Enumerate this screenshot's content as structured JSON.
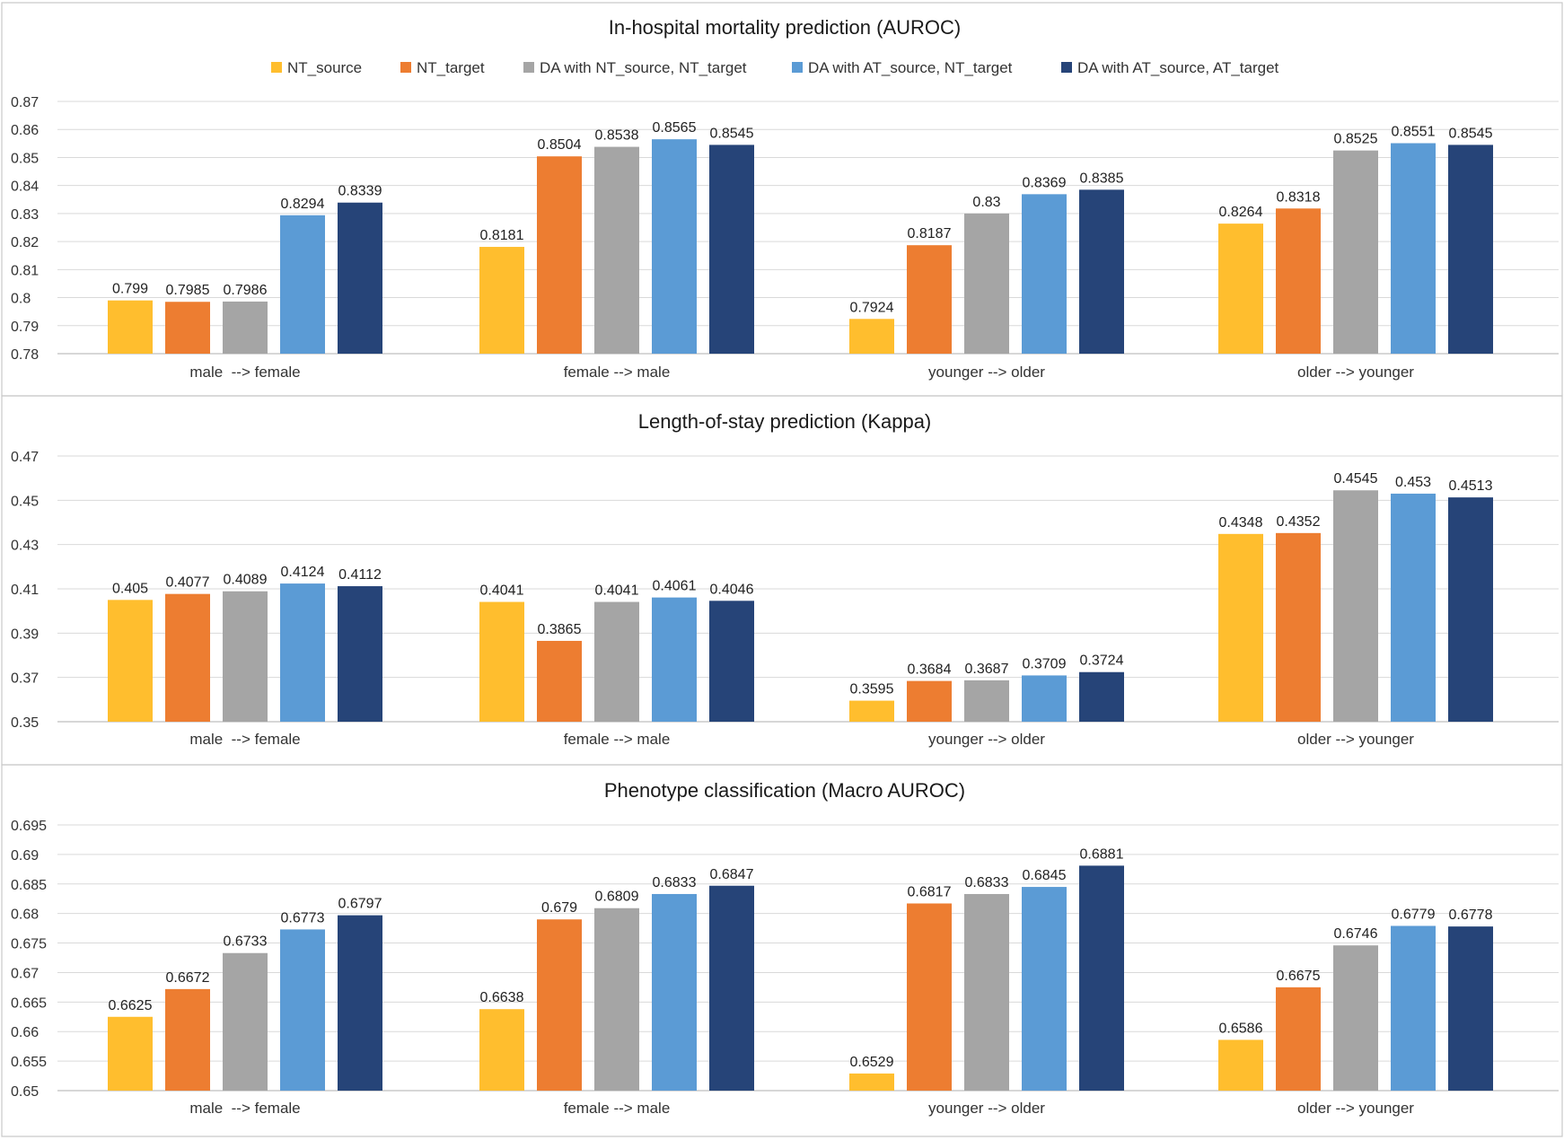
{
  "colors": {
    "NT_source": "#FFBE2E",
    "NT_target": "#ED7D31",
    "DA with NT_source, NT_target": "#A5A5A5",
    "DA with AT_source, NT_target": "#5B9BD5",
    "DA with AT_source, AT_target": "#264478"
  },
  "legend": [
    "NT_source",
    "NT_target",
    "DA with NT_source, NT_target",
    "DA with AT_source, NT_target",
    "DA with AT_source, AT_target"
  ],
  "chart_data": [
    {
      "type": "bar",
      "title": "In-hospital mortality prediction (AUROC)",
      "categories": [
        "male  --> female",
        "female --> male",
        "younger --> older",
        "older --> younger"
      ],
      "ylim": [
        0.78,
        0.87
      ],
      "yticks": [
        "0.78",
        "0.79",
        "0.8",
        "0.81",
        "0.82",
        "0.83",
        "0.84",
        "0.85",
        "0.86",
        "0.87"
      ],
      "series": [
        {
          "name": "NT_source",
          "values": [
            0.799,
            0.8181,
            0.7924,
            0.8264
          ],
          "labels": [
            "0.799",
            "0.8181",
            "0.7924",
            "0.8264"
          ]
        },
        {
          "name": "NT_target",
          "values": [
            0.7985,
            0.8504,
            0.8187,
            0.8318
          ],
          "labels": [
            "0.7985",
            "0.8504",
            "0.8187",
            "0.8318"
          ]
        },
        {
          "name": "DA with NT_source, NT_target",
          "values": [
            0.7986,
            0.8538,
            0.83,
            0.8525
          ],
          "labels": [
            "0.7986",
            "0.8538",
            "0.83",
            "0.8525"
          ]
        },
        {
          "name": "DA with AT_source, NT_target",
          "values": [
            0.8294,
            0.8565,
            0.8369,
            0.8551
          ],
          "labels": [
            "0.8294",
            "0.8565",
            "0.8369",
            "0.8551"
          ]
        },
        {
          "name": "DA with AT_source, AT_target",
          "values": [
            0.8339,
            0.8545,
            0.8385,
            0.8545
          ],
          "labels": [
            "0.8339",
            "0.8545",
            "0.8385",
            "0.8545"
          ]
        }
      ]
    },
    {
      "type": "bar",
      "title": "Length-of-stay prediction (Kappa)",
      "categories": [
        "male  --> female",
        "female --> male",
        "younger --> older",
        "older --> younger"
      ],
      "ylim": [
        0.35,
        0.47
      ],
      "yticks": [
        "0.35",
        "0.37",
        "0.39",
        "0.41",
        "0.43",
        "0.45",
        "0.47"
      ],
      "series": [
        {
          "name": "NT_source",
          "values": [
            0.405,
            0.4041,
            0.3595,
            0.4348
          ],
          "labels": [
            "0.405",
            "0.4041",
            "0.3595",
            "0.4348"
          ]
        },
        {
          "name": "NT_target",
          "values": [
            0.4077,
            0.3865,
            0.3684,
            0.4352
          ],
          "labels": [
            "0.4077",
            "0.3865",
            "0.3684",
            "0.4352"
          ]
        },
        {
          "name": "DA with NT_source, NT_target",
          "values": [
            0.4089,
            0.4041,
            0.3687,
            0.4545
          ],
          "labels": [
            "0.4089",
            "0.4041",
            "0.3687",
            "0.4545"
          ]
        },
        {
          "name": "DA with AT_source, NT_target",
          "values": [
            0.4124,
            0.4061,
            0.3709,
            0.453
          ],
          "labels": [
            "0.4124",
            "0.4061",
            "0.3709",
            "0.453"
          ]
        },
        {
          "name": "DA with AT_source, AT_target",
          "values": [
            0.4112,
            0.4046,
            0.3724,
            0.4513
          ],
          "labels": [
            "0.4112",
            "0.4046",
            "0.3724",
            "0.4513"
          ]
        }
      ]
    },
    {
      "type": "bar",
      "title": "Phenotype classification (Macro AUROC)",
      "categories": [
        "male  --> female",
        "female --> male",
        "younger --> older",
        "older --> younger"
      ],
      "ylim": [
        0.65,
        0.695
      ],
      "yticks": [
        "0.65",
        "0.655",
        "0.66",
        "0.665",
        "0.67",
        "0.675",
        "0.68",
        "0.685",
        "0.69",
        "0.695"
      ],
      "series": [
        {
          "name": "NT_source",
          "values": [
            0.6625,
            0.6638,
            0.6529,
            0.6586
          ],
          "labels": [
            "0.6625",
            "0.6638",
            "0.6529",
            "0.6586"
          ]
        },
        {
          "name": "NT_target",
          "values": [
            0.6672,
            0.679,
            0.6817,
            0.6675
          ],
          "labels": [
            "0.6672",
            "0.679",
            "0.6817",
            "0.6675"
          ]
        },
        {
          "name": "DA with NT_source, NT_target",
          "values": [
            0.6733,
            0.6809,
            0.6833,
            0.6746
          ],
          "labels": [
            "0.6733",
            "0.6809",
            "0.6833",
            "0.6746"
          ]
        },
        {
          "name": "DA with AT_source, NT_target",
          "values": [
            0.6773,
            0.6833,
            0.6845,
            0.6779
          ],
          "labels": [
            "0.6773",
            "0.6833",
            "0.6845",
            "0.6779"
          ]
        },
        {
          "name": "DA with AT_source, AT_target",
          "values": [
            0.6797,
            0.6847,
            0.6881,
            0.6778
          ],
          "labels": [
            "0.6797",
            "0.6847",
            "0.6881",
            "0.6778"
          ]
        }
      ]
    }
  ]
}
